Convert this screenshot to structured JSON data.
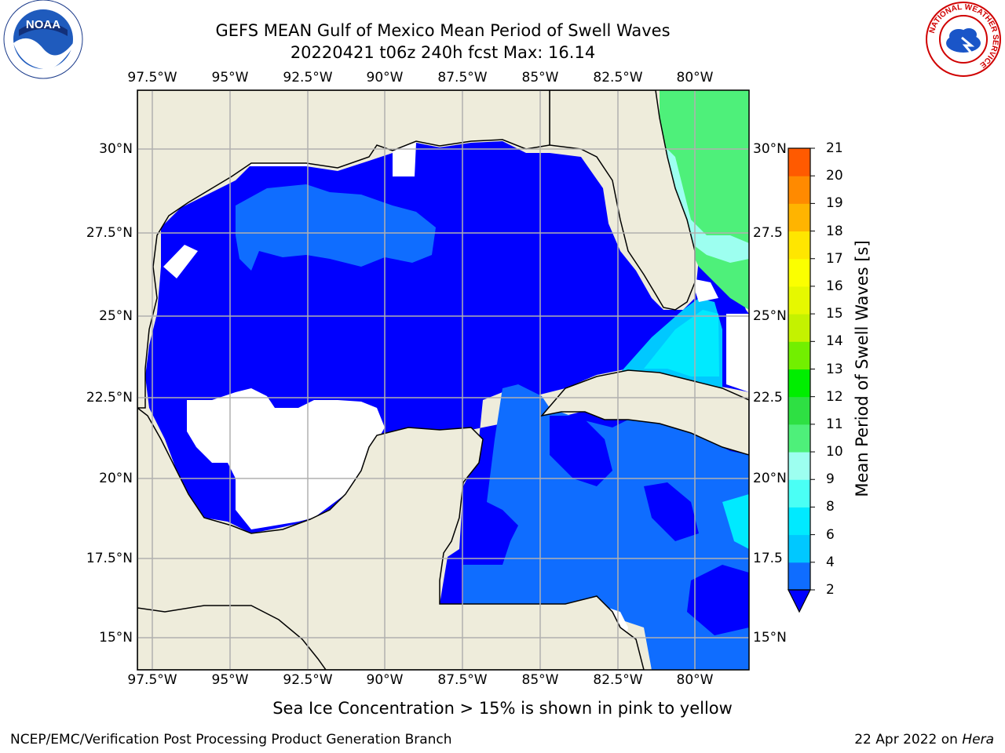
{
  "title": {
    "line1": "GEFS MEAN Gulf of Mexico Mean Period of Swell Waves",
    "line2": "20220421 t06z 240h fcst   Max: 16.14"
  },
  "map": {
    "lon_ticks": [
      "97.5°W",
      "95°W",
      "92.5°W",
      "90°W",
      "87.5°W",
      "85°W",
      "82.5°W",
      "80°W"
    ],
    "lat_ticks_left": [
      "30°N",
      "27.5°N",
      "25°N",
      "22.5°N",
      "20°N",
      "17.5°N",
      "15°N"
    ],
    "lat_ticks_right": [
      "30°N",
      "27.5",
      "25°N",
      "22.5",
      "20°N",
      "17.5",
      "15°N"
    ],
    "colors": {
      "land": "#eeecdb",
      "no_data": "#ffffff",
      "grid": "#b0b0b0",
      "coast": "#000000"
    }
  },
  "colorbar": {
    "label": "Mean Period of Swell Waves [s]",
    "ticks": [
      "2",
      "4",
      "6",
      "8",
      "9",
      "10",
      "11",
      "12",
      "13",
      "14",
      "15",
      "16",
      "17",
      "18",
      "19",
      "20",
      "21"
    ],
    "colors": [
      "#0f6dff",
      "#00c8ff",
      "#00eaff",
      "#4afff5",
      "#9dfff0",
      "#4ef07a",
      "#2ee043",
      "#00ee00",
      "#72ef00",
      "#c4f200",
      "#e6f800",
      "#fbff00",
      "#ffe600",
      "#ffb400",
      "#ff8a00",
      "#ff5a00",
      "#ff2800",
      "#ff0000"
    ],
    "under_color": "#0000ff"
  },
  "caption": "Sea Ice Concentration > 15% is shown in pink to yellow",
  "footer": {
    "left": "NCEP/EMC/Verification Post Processing Product Generation Branch",
    "right_date": "22 Apr 2022 on ",
    "right_host": "Hera"
  },
  "logos": {
    "noaa_text": "NOAA",
    "nws_text": "NATIONAL WEATHER SERVICE"
  }
}
